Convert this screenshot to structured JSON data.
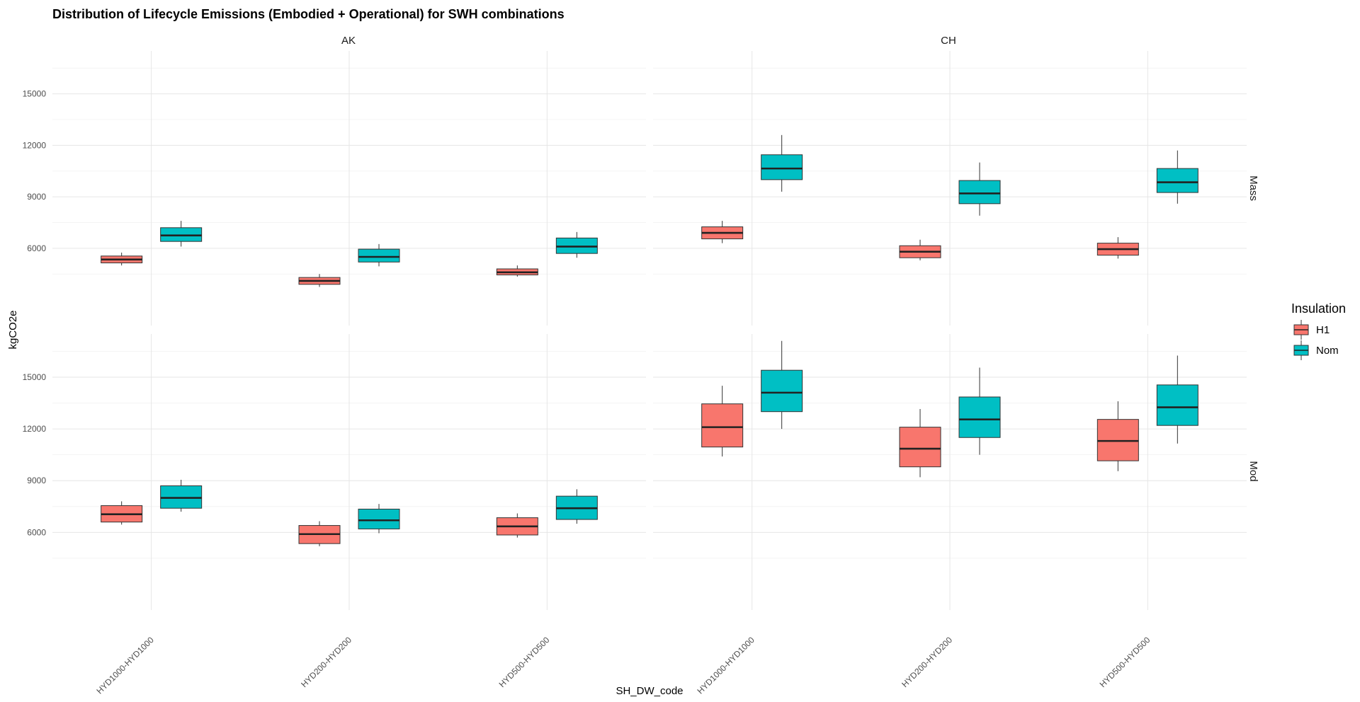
{
  "chart_data": {
    "type": "box",
    "title": "Distribution of Lifecycle Emissions (Embodied + Operational) for SWH combinations",
    "xlabel": "SH_DW_code",
    "ylabel": "kgCO2e",
    "categories": [
      "HYD1000-HYD1000",
      "HYD200-HYD200",
      "HYD500-HYD500"
    ],
    "facet_columns": [
      "AK",
      "CH"
    ],
    "facet_rows": [
      "Mass",
      "Mod"
    ],
    "yticks": [
      6000,
      9000,
      12000,
      15000
    ],
    "ylim": [
      1500,
      17500
    ],
    "grid": true,
    "legend": {
      "title": "Insulation",
      "position": "right",
      "entries": [
        {
          "name": "H1",
          "color": "#F8766D"
        },
        {
          "name": "Nom",
          "color": "#00BFC4"
        }
      ]
    },
    "panels": [
      {
        "row": "Mass",
        "col": "AK",
        "boxes": [
          {
            "category": "HYD1000-HYD1000",
            "group": "H1",
            "min": 5000,
            "q1": 5150,
            "median": 5350,
            "q3": 5550,
            "max": 5750
          },
          {
            "category": "HYD1000-HYD1000",
            "group": "Nom",
            "min": 6100,
            "q1": 6400,
            "median": 6750,
            "q3": 7200,
            "max": 7600
          },
          {
            "category": "HYD200-HYD200",
            "group": "H1",
            "min": 3750,
            "q1": 3900,
            "median": 4100,
            "q3": 4300,
            "max": 4500
          },
          {
            "category": "HYD200-HYD200",
            "group": "Nom",
            "min": 4950,
            "q1": 5200,
            "median": 5500,
            "q3": 5950,
            "max": 6250
          },
          {
            "category": "HYD500-HYD500",
            "group": "H1",
            "min": 4350,
            "q1": 4450,
            "median": 4600,
            "q3": 4800,
            "max": 5000
          },
          {
            "category": "HYD500-HYD500",
            "group": "Nom",
            "min": 5450,
            "q1": 5700,
            "median": 6100,
            "q3": 6600,
            "max": 6950
          }
        ]
      },
      {
        "row": "Mass",
        "col": "CH",
        "boxes": [
          {
            "category": "HYD1000-HYD1000",
            "group": "H1",
            "min": 6300,
            "q1": 6550,
            "median": 6900,
            "q3": 7250,
            "max": 7600
          },
          {
            "category": "HYD1000-HYD1000",
            "group": "Nom",
            "min": 9300,
            "q1": 10000,
            "median": 10650,
            "q3": 11450,
            "max": 12600
          },
          {
            "category": "HYD200-HYD200",
            "group": "H1",
            "min": 5300,
            "q1": 5450,
            "median": 5800,
            "q3": 6150,
            "max": 6500
          },
          {
            "category": "HYD200-HYD200",
            "group": "Nom",
            "min": 7900,
            "q1": 8600,
            "median": 9200,
            "q3": 9950,
            "max": 11000
          },
          {
            "category": "HYD500-HYD500",
            "group": "H1",
            "min": 5400,
            "q1": 5600,
            "median": 5950,
            "q3": 6300,
            "max": 6650
          },
          {
            "category": "HYD500-HYD500",
            "group": "Nom",
            "min": 8600,
            "q1": 9250,
            "median": 9850,
            "q3": 10650,
            "max": 11700
          }
        ]
      },
      {
        "row": "Mod",
        "col": "AK",
        "boxes": [
          {
            "category": "HYD1000-HYD1000",
            "group": "H1",
            "min": 6450,
            "q1": 6600,
            "median": 7050,
            "q3": 7550,
            "max": 7800
          },
          {
            "category": "HYD1000-HYD1000",
            "group": "Nom",
            "min": 7200,
            "q1": 7400,
            "median": 8000,
            "q3": 8700,
            "max": 9050
          },
          {
            "category": "HYD200-HYD200",
            "group": "H1",
            "min": 5200,
            "q1": 5350,
            "median": 5900,
            "q3": 6400,
            "max": 6650
          },
          {
            "category": "HYD200-HYD200",
            "group": "Nom",
            "min": 5950,
            "q1": 6200,
            "median": 6700,
            "q3": 7350,
            "max": 7650
          },
          {
            "category": "HYD500-HYD500",
            "group": "H1",
            "min": 5700,
            "q1": 5850,
            "median": 6350,
            "q3": 6850,
            "max": 7100
          },
          {
            "category": "HYD500-HYD500",
            "group": "Nom",
            "min": 6500,
            "q1": 6750,
            "median": 7400,
            "q3": 8100,
            "max": 8500
          }
        ]
      },
      {
        "row": "Mod",
        "col": "CH",
        "boxes": [
          {
            "category": "HYD1000-HYD1000",
            "group": "H1",
            "min": 10400,
            "q1": 10950,
            "median": 12100,
            "q3": 13450,
            "max": 14500
          },
          {
            "category": "HYD1000-HYD1000",
            "group": "Nom",
            "min": 12000,
            "q1": 13000,
            "median": 14100,
            "q3": 15400,
            "max": 17100
          },
          {
            "category": "HYD200-HYD200",
            "group": "H1",
            "min": 9200,
            "q1": 9800,
            "median": 10850,
            "q3": 12100,
            "max": 13150
          },
          {
            "category": "HYD200-HYD200",
            "group": "Nom",
            "min": 10500,
            "q1": 11500,
            "median": 12550,
            "q3": 13850,
            "max": 15550
          },
          {
            "category": "HYD500-HYD500",
            "group": "H1",
            "min": 9550,
            "q1": 10150,
            "median": 11300,
            "q3": 12550,
            "max": 13600
          },
          {
            "category": "HYD500-HYD500",
            "group": "Nom",
            "min": 11150,
            "q1": 12200,
            "median": 13250,
            "q3": 14550,
            "max": 16250
          }
        ]
      }
    ]
  }
}
